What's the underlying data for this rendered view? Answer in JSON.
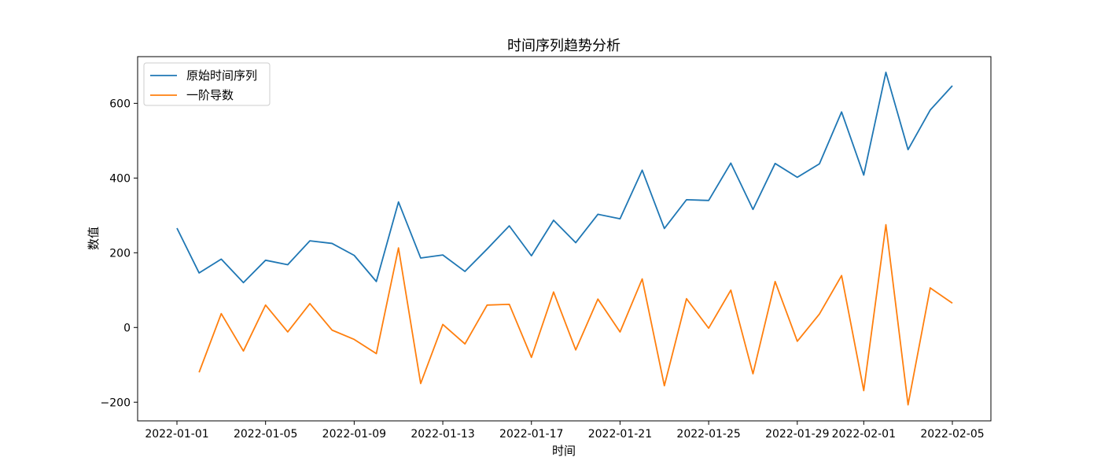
{
  "chart_data": {
    "type": "line",
    "title": "时间序列趋势分析",
    "xlabel": "时间",
    "ylabel": "数值",
    "x": [
      "2022-01-01",
      "2022-01-02",
      "2022-01-03",
      "2022-01-04",
      "2022-01-05",
      "2022-01-06",
      "2022-01-07",
      "2022-01-08",
      "2022-01-09",
      "2022-01-10",
      "2022-01-11",
      "2022-01-12",
      "2022-01-13",
      "2022-01-14",
      "2022-01-15",
      "2022-01-16",
      "2022-01-17",
      "2022-01-18",
      "2022-01-19",
      "2022-01-20",
      "2022-01-21",
      "2022-01-22",
      "2022-01-23",
      "2022-01-24",
      "2022-01-25",
      "2022-01-26",
      "2022-01-27",
      "2022-01-28",
      "2022-01-29",
      "2022-01-30",
      "2022-01-31",
      "2022-02-01",
      "2022-02-02",
      "2022-02-03",
      "2022-02-04",
      "2022-02-05"
    ],
    "xticks": [
      "2022-01-01",
      "2022-01-05",
      "2022-01-09",
      "2022-01-13",
      "2022-01-17",
      "2022-01-21",
      "2022-01-25",
      "2022-01-29",
      "2022-02-01",
      "2022-02-05"
    ],
    "yticks": [
      -200,
      0,
      200,
      400,
      600
    ],
    "ylim": [
      -250,
      725
    ],
    "series": [
      {
        "name": "原始时间序列",
        "color": "#1f77b4",
        "values": [
          266,
          146,
          183,
          120,
          180,
          168,
          232,
          225,
          193,
          123,
          336,
          186,
          194,
          150,
          210,
          272,
          192,
          287,
          227,
          303,
          291,
          421,
          265,
          342,
          340,
          440,
          316,
          439,
          402,
          438,
          577,
          408,
          683,
          476,
          582,
          647
        ]
      },
      {
        "name": "一阶导数",
        "color": "#ff7f0e",
        "values": [
          null,
          -120,
          37,
          -63,
          60,
          -12,
          64,
          -7,
          -32,
          -70,
          213,
          -150,
          8,
          -44,
          60,
          62,
          -80,
          95,
          -60,
          76,
          -12,
          130,
          -156,
          77,
          -2,
          100,
          -124,
          123,
          -37,
          36,
          139,
          -169,
          275,
          -207,
          106,
          65
        ]
      }
    ],
    "legend": "top-left",
    "grid": false
  }
}
